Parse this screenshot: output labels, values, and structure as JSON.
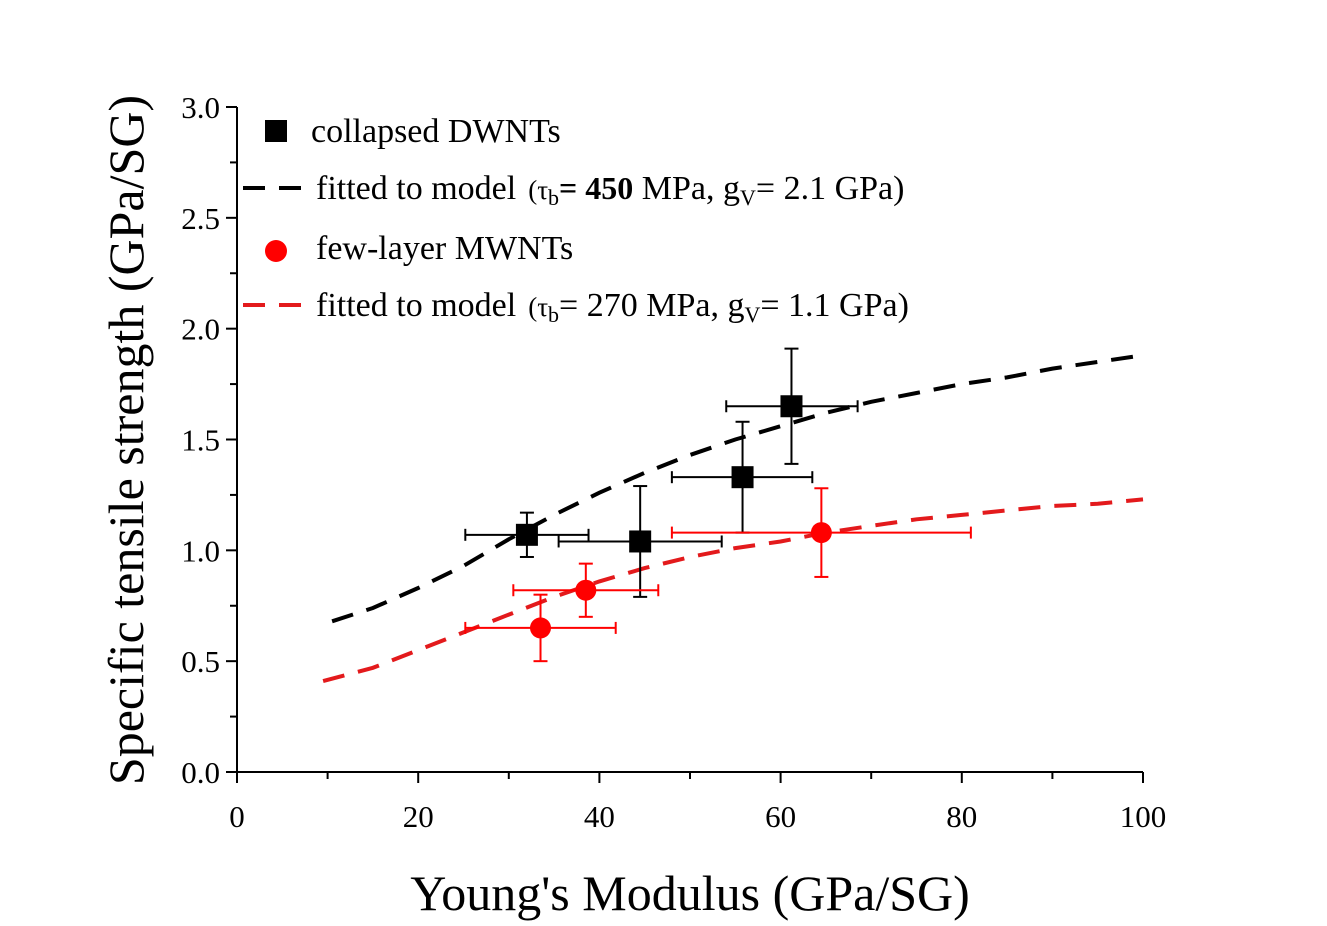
{
  "chart_data": {
    "type": "scatter",
    "xlabel": "Young's Modulus (GPa/SG)",
    "ylabel": "Specific tensile strength (GPa/SG)",
    "xlim": [
      0,
      100
    ],
    "ylim": [
      0.0,
      3.0
    ],
    "x_ticks": [
      "0",
      "20",
      "40",
      "60",
      "80",
      "100"
    ],
    "y_ticks": [
      "0.0",
      "0.5",
      "1.0",
      "1.5",
      "2.0",
      "2.5",
      "3.0"
    ],
    "legend_position": "top-left",
    "series": [
      {
        "name": "collapsed DWNTs",
        "kind": "points",
        "marker": "square",
        "color": "#000000",
        "points": [
          {
            "x": 32.0,
            "y": 1.07,
            "xerr": [
              25.2,
              38.8
            ],
            "yerr": [
              0.97,
              1.17
            ]
          },
          {
            "x": 44.5,
            "y": 1.04,
            "xerr": [
              35.5,
              53.5
            ],
            "yerr": [
              0.79,
              1.29
            ]
          },
          {
            "x": 55.8,
            "y": 1.33,
            "xerr": [
              48.0,
              63.5
            ],
            "yerr": [
              1.08,
              1.58
            ]
          },
          {
            "x": 61.2,
            "y": 1.65,
            "xerr": [
              54.0,
              68.5
            ],
            "yerr": [
              1.39,
              1.91
            ]
          }
        ]
      },
      {
        "name": "few-layer MWNTs",
        "kind": "points",
        "marker": "circle",
        "color": "#ff0000",
        "points": [
          {
            "x": 33.5,
            "y": 0.65,
            "xerr": [
              25.2,
              41.8
            ],
            "yerr": [
              0.5,
              0.8
            ]
          },
          {
            "x": 38.5,
            "y": 0.82,
            "xerr": [
              30.5,
              46.5
            ],
            "yerr": [
              0.7,
              0.94
            ]
          },
          {
            "x": 64.5,
            "y": 1.08,
            "xerr": [
              48.0,
              81.0
            ],
            "yerr": [
              0.88,
              1.28
            ]
          }
        ]
      },
      {
        "name": "fitted to model",
        "kind": "line",
        "dash": true,
        "color": "#000000",
        "points": [
          [
            10.5,
            0.68
          ],
          [
            15,
            0.74
          ],
          [
            20,
            0.83
          ],
          [
            25,
            0.93
          ],
          [
            30,
            1.05
          ],
          [
            35,
            1.16
          ],
          [
            40,
            1.26
          ],
          [
            45,
            1.35
          ],
          [
            50,
            1.43
          ],
          [
            55,
            1.5
          ],
          [
            60,
            1.56
          ],
          [
            65,
            1.62
          ],
          [
            70,
            1.67
          ],
          [
            75,
            1.71
          ],
          [
            80,
            1.75
          ],
          [
            85,
            1.78
          ],
          [
            90,
            1.82
          ],
          [
            95,
            1.85
          ],
          [
            100,
            1.88
          ]
        ]
      },
      {
        "name": "fitted to model",
        "kind": "line",
        "dash": true,
        "color": "#e31a1c",
        "points": [
          [
            9.5,
            0.41
          ],
          [
            15,
            0.47
          ],
          [
            20,
            0.55
          ],
          [
            25,
            0.63
          ],
          [
            30,
            0.71
          ],
          [
            35,
            0.79
          ],
          [
            40,
            0.86
          ],
          [
            45,
            0.92
          ],
          [
            50,
            0.97
          ],
          [
            55,
            1.01
          ],
          [
            60,
            1.04
          ],
          [
            65,
            1.08
          ],
          [
            70,
            1.11
          ],
          [
            75,
            1.14
          ],
          [
            80,
            1.16
          ],
          [
            85,
            1.18
          ],
          [
            90,
            1.2
          ],
          [
            95,
            1.21
          ],
          [
            100,
            1.23
          ]
        ]
      }
    ],
    "legend": [
      {
        "label": "collapsed DWNTs"
      },
      {
        "label": "fitted to model",
        "open": "(",
        "tau": "τ",
        "tau_sub": "b",
        "eq": "= 450",
        "units": " MPa, g",
        "g_sub": "V",
        "g_val": "= 2.1 GPa)"
      },
      {
        "label": "few-layer MWNTs"
      },
      {
        "label": "fitted to model",
        "open": "(",
        "tau": "τ",
        "tau_sub": "b",
        "eq": "= 270",
        "units": " MPa, g",
        "g_sub": "V",
        "g_val": "= 1.1 GPa)"
      }
    ]
  }
}
